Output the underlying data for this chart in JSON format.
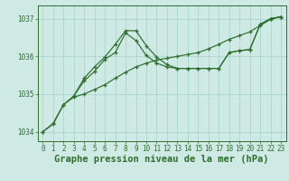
{
  "background_color": "#cfe9e5",
  "grid_color": "#a8d5cc",
  "line_color": "#2d6e2d",
  "title": "Graphe pression niveau de la mer (hPa)",
  "xlim": [
    -0.5,
    23.5
  ],
  "ylim": [
    1033.75,
    1037.35
  ],
  "yticks": [
    1034,
    1035,
    1036,
    1037
  ],
  "xticks": [
    0,
    1,
    2,
    3,
    4,
    5,
    6,
    7,
    8,
    9,
    10,
    11,
    12,
    13,
    14,
    15,
    16,
    17,
    18,
    19,
    20,
    21,
    22,
    23
  ],
  "line1_x": [
    0,
    1,
    2,
    3,
    4,
    5,
    6,
    7,
    8,
    9,
    10,
    11,
    12,
    13,
    14,
    15,
    16,
    17,
    18,
    19,
    20,
    21,
    22,
    23
  ],
  "line1_y": [
    1034.0,
    1034.2,
    1034.72,
    1034.92,
    1035.0,
    1035.12,
    1035.25,
    1035.42,
    1035.58,
    1035.72,
    1035.82,
    1035.9,
    1035.95,
    1036.0,
    1036.05,
    1036.1,
    1036.2,
    1036.32,
    1036.45,
    1036.55,
    1036.65,
    1036.82,
    1036.98,
    1037.05
  ],
  "line2_x": [
    0,
    1,
    2,
    3,
    4,
    5,
    6,
    7,
    8,
    9,
    10,
    11,
    12,
    13,
    14,
    15,
    16,
    17,
    18,
    19,
    20,
    21,
    22,
    23
  ],
  "line2_y": [
    1034.0,
    1034.22,
    1034.72,
    1034.95,
    1035.35,
    1035.6,
    1035.92,
    1036.1,
    1036.62,
    1036.42,
    1036.02,
    1035.82,
    1035.72,
    1035.68,
    1035.68,
    1035.68,
    1035.68,
    1035.68,
    1036.1,
    1036.15,
    1036.18,
    1036.85,
    1037.0,
    1037.05
  ],
  "line3_x": [
    3,
    4,
    5,
    6,
    7,
    8,
    9,
    10,
    11,
    12,
    13,
    14,
    15,
    16,
    17,
    18,
    19,
    20,
    21,
    22,
    23
  ],
  "line3_y": [
    1034.95,
    1035.42,
    1035.72,
    1035.98,
    1036.32,
    1036.68,
    1036.68,
    1036.28,
    1035.98,
    1035.78,
    1035.68,
    1035.68,
    1035.68,
    1035.68,
    1035.68,
    1036.1,
    1036.15,
    1036.18,
    1036.85,
    1037.0,
    1037.05
  ],
  "title_fontsize": 7.5,
  "tick_fontsize": 5.5
}
